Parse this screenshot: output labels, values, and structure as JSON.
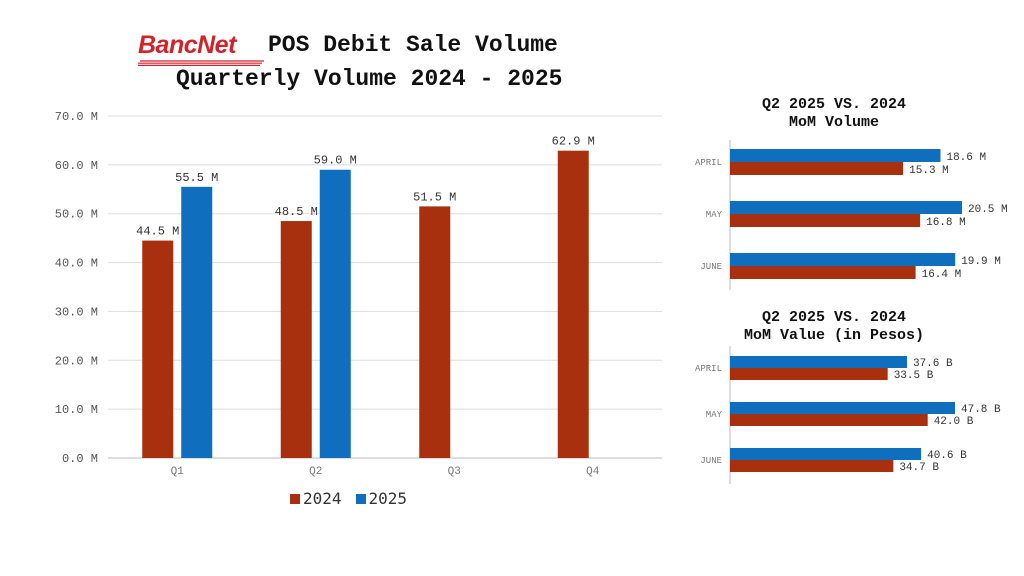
{
  "brand": {
    "logo_text": "BancNet",
    "logo_color": "#d2232a"
  },
  "header": {
    "title_line1": "POS Debit Sale Volume",
    "title_line2": "Quarterly Volume 2024 - 2025"
  },
  "colors": {
    "s2024": "#a8300f",
    "s2025": "#0f6fbe",
    "grid": "#dddddd",
    "axis": "#444444"
  },
  "chart_data": [
    {
      "id": "quarterly",
      "type": "bar",
      "orientation": "vertical",
      "title": "POS Debit Sale Volume - Quarterly Volume 2024 - 2025",
      "categories": [
        "Q1",
        "Q2",
        "Q3",
        "Q4"
      ],
      "series": [
        {
          "name": "2024",
          "values": [
            44.5,
            48.5,
            51.5,
            62.9
          ],
          "labels": [
            "44.5 M",
            "48.5 M",
            "51.5 M",
            "62.9 M"
          ]
        },
        {
          "name": "2025",
          "values": [
            55.5,
            59.0,
            null,
            null
          ],
          "labels": [
            "55.5 M",
            "59.0 M",
            "",
            ""
          ]
        }
      ],
      "ylim": [
        0,
        70
      ],
      "yticks": [
        0,
        10,
        20,
        30,
        40,
        50,
        60,
        70
      ],
      "ytick_labels": [
        "0.0 M",
        "10.0 M",
        "20.0 M",
        "30.0 M",
        "40.0 M",
        "50.0 M",
        "60.0 M",
        "70.0 M"
      ],
      "grid": true,
      "legend": [
        "2024",
        "2025"
      ],
      "legend_position": "bottom"
    },
    {
      "id": "mom_volume",
      "type": "bar",
      "orientation": "horizontal",
      "title_line1": "Q2 2025 VS. 2024",
      "title_line2": "MoM Volume",
      "categories": [
        "APRIL",
        "MAY",
        "JUNE"
      ],
      "series": [
        {
          "name": "2025",
          "values": [
            18.6,
            20.5,
            19.9
          ],
          "labels": [
            "18.6 M",
            "20.5 M",
            "19.9 M"
          ]
        },
        {
          "name": "2024",
          "values": [
            15.3,
            16.8,
            16.4
          ],
          "labels": [
            "15.3 M",
            "16.8 M",
            "16.4 M"
          ]
        }
      ],
      "xlim": [
        0,
        20.5
      ]
    },
    {
      "id": "mom_value",
      "type": "bar",
      "orientation": "horizontal",
      "title_line1": "Q2 2025 VS. 2024",
      "title_line2": "MoM Value (in Pesos)",
      "categories": [
        "APRIL",
        "MAY",
        "JUNE"
      ],
      "series": [
        {
          "name": "2025",
          "values": [
            37.6,
            47.8,
            40.6
          ],
          "labels": [
            "37.6 B",
            "47.8 B",
            "40.6 B"
          ]
        },
        {
          "name": "2024",
          "values": [
            33.5,
            42.0,
            34.7
          ],
          "labels": [
            "33.5 B",
            "42.0 B",
            "34.7 B"
          ]
        }
      ],
      "xlim": [
        0,
        47.8
      ]
    }
  ]
}
